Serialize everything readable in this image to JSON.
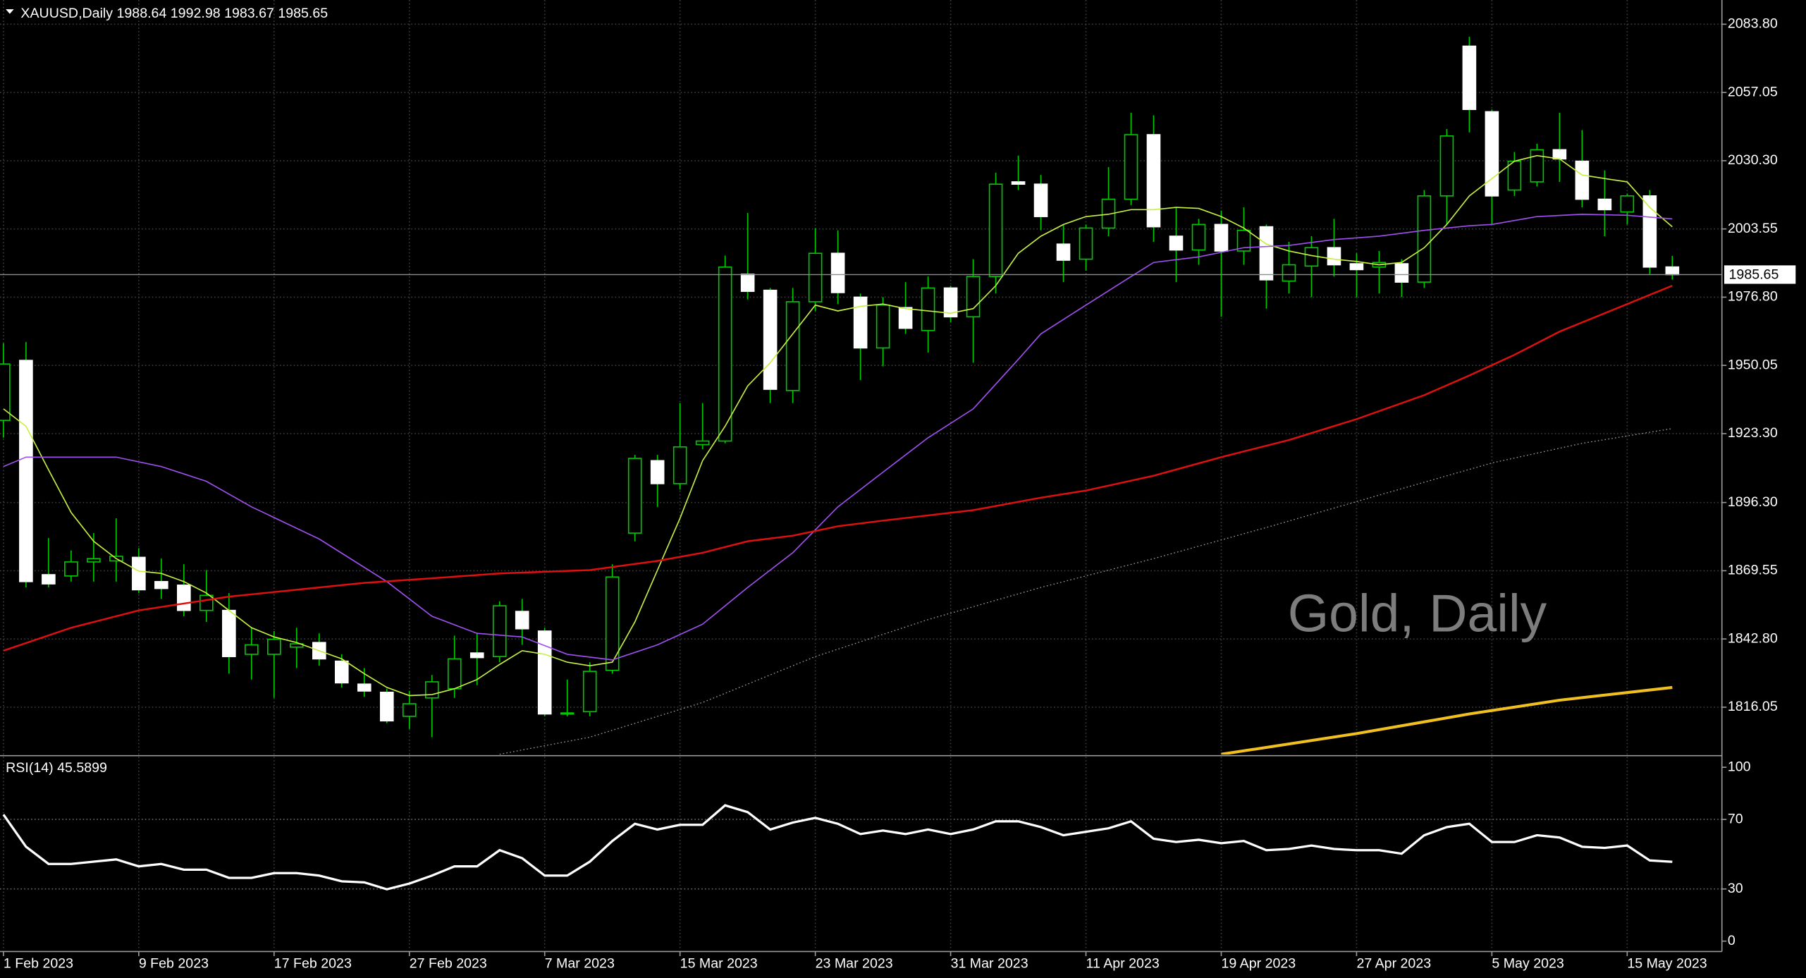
{
  "chart_data": [
    {
      "type": "candlestick",
      "header": "XAUUSD,Daily  1988.64 1992.98 1983.67 1985.65",
      "watermark": "Gold, Daily",
      "categories": [
        "1 Feb 2023",
        null,
        null,
        null,
        null,
        null,
        "9 Feb 2023",
        null,
        null,
        null,
        null,
        null,
        "17 Feb 2023",
        null,
        null,
        null,
        null,
        null,
        "27 Feb 2023",
        null,
        null,
        null,
        null,
        null,
        "7 Mar 2023",
        null,
        null,
        null,
        null,
        null,
        "15 Mar 2023",
        null,
        null,
        null,
        null,
        null,
        "23 Mar 2023",
        null,
        null,
        null,
        null,
        null,
        "31 Mar 2023",
        null,
        null,
        null,
        null,
        null,
        "11 Apr 2023",
        null,
        null,
        null,
        null,
        null,
        "19 Apr 2023",
        null,
        null,
        null,
        null,
        null,
        "27 Apr 2023",
        null,
        null,
        null,
        null,
        null,
        "5 May 2023",
        null,
        null,
        null,
        null,
        null,
        "15 May 2023",
        null,
        null
      ],
      "open": [
        1928.5,
        1952.0,
        1868.0,
        1867.5,
        1873.0,
        1873.4,
        1874.8,
        1865.3,
        1863.9,
        1854.0,
        1854.0,
        1836.8,
        1836.8,
        1839.6,
        1841.4,
        1834.1,
        1825.1,
        1821.9,
        1812.5,
        1819.7,
        1823.3,
        1837.3,
        1835.9,
        1853.6,
        1845.9,
        1813.4,
        1814.3,
        1830.5,
        1884.3,
        1912.7,
        1903.7,
        1919.0,
        1920.4,
        1985.8,
        1979.5,
        1940.2,
        1975.0,
        1994.0,
        1976.8,
        1956.9,
        1972.7,
        1963.7,
        1980.4,
        1969.1,
        1984.9,
        2022.0,
        2021.1,
        1997.6,
        1991.7,
        2003.9,
        2015.2,
        2040.5,
        2000.7,
        1995.3,
        2005.3,
        1994.9,
        2004.4,
        1983.1,
        1989.0,
        1996.2,
        1989.9,
        1988.6,
        1989.9,
        1982.7,
        2016.5,
        2075.2,
        2049.5,
        2018.8,
        2022.0,
        2034.6,
        2030.1,
        2015.2,
        2010.2,
        2016.5,
        1988.64
      ],
      "high": [
        1958.7,
        1959.2,
        1882.4,
        1877.5,
        1884.3,
        1890.1,
        1878.4,
        1874.3,
        1872.1,
        1869.8,
        1860.8,
        1847.2,
        1845.9,
        1847.2,
        1845.0,
        1836.8,
        1831.4,
        1823.3,
        1822.4,
        1828.7,
        1844.1,
        1845.0,
        1857.6,
        1858.5,
        1847.2,
        1826.9,
        1833.7,
        1872.1,
        1915.0,
        1915.0,
        1935.3,
        1935.3,
        1993.1,
        2009.8,
        1980.4,
        1980.4,
        2003.9,
        2003.0,
        1978.2,
        1976.8,
        1982.7,
        1984.9,
        1981.3,
        1991.7,
        2025.6,
        2032.3,
        2024.7,
        2005.3,
        2005.3,
        2027.8,
        2049.1,
        2048.1,
        2012.0,
        2007.5,
        2010.7,
        2012.0,
        2005.3,
        1998.5,
        2000.7,
        2007.5,
        1994.0,
        1994.9,
        1991.7,
        2018.8,
        2042.7,
        2078.9,
        2050.4,
        2033.7,
        2036.9,
        2049.1,
        2042.3,
        2026.5,
        2017.4,
        2018.8,
        1992.98
      ],
      "low": [
        1921.7,
        1863.0,
        1863.0,
        1865.3,
        1865.3,
        1865.3,
        1860.8,
        1858.5,
        1851.7,
        1849.5,
        1829.2,
        1826.9,
        1819.7,
        1831.4,
        1832.3,
        1823.8,
        1820.1,
        1809.8,
        1807.5,
        1804.3,
        1819.7,
        1824.7,
        1833.7,
        1840.5,
        1812.5,
        1812.5,
        1812.5,
        1829.2,
        1881.1,
        1894.6,
        1901.4,
        1917.2,
        1919.5,
        1975.9,
        1935.3,
        1935.3,
        1971.4,
        1974.1,
        1944.3,
        1949.7,
        1962.4,
        1955.1,
        1966.9,
        1951.1,
        1978.2,
        2018.8,
        2003.0,
        1982.7,
        1987.2,
        2000.7,
        2012.9,
        1998.5,
        1982.7,
        1989.5,
        1969.1,
        1989.5,
        1972.3,
        1978.2,
        1976.8,
        1984.9,
        1976.8,
        1978.2,
        1976.8,
        1980.4,
        2005.3,
        2041.4,
        2005.3,
        2016.5,
        2020.2,
        2022.0,
        2012.0,
        2000.7,
        2005.3,
        1985.8,
        1983.67
      ],
      "close": [
        1950.6,
        1865.3,
        1864.4,
        1873.0,
        1874.3,
        1875.2,
        1862.1,
        1862.6,
        1854.0,
        1859.9,
        1835.9,
        1840.5,
        1842.7,
        1840.9,
        1835.0,
        1825.6,
        1822.4,
        1810.7,
        1817.4,
        1826.0,
        1835.0,
        1835.5,
        1855.8,
        1846.8,
        1813.4,
        1813.8,
        1830.1,
        1867.1,
        1913.6,
        1903.7,
        1918.1,
        1920.4,
        1988.6,
        1979.1,
        1940.7,
        1975.0,
        1994.0,
        1978.6,
        1956.9,
        1973.7,
        1964.6,
        1980.4,
        1969.1,
        1984.9,
        2021.1,
        2021.1,
        2008.4,
        1991.3,
        2003.9,
        2015.2,
        2040.5,
        2004.4,
        1995.3,
        2005.3,
        1994.9,
        2003.0,
        1983.6,
        1989.5,
        1996.2,
        1989.5,
        1987.6,
        1990.4,
        1982.7,
        2016.5,
        2040.0,
        2050.4,
        2016.5,
        2030.1,
        2034.6,
        2031.0,
        2015.2,
        2011.1,
        2016.5,
        1988.6,
        1985.65
      ],
      "up_color": "#00c800",
      "bull_fill": "#000000",
      "bear_fill": "#ffffff",
      "overlays": [
        {
          "color": "#c8f040",
          "width": 1,
          "dash": null,
          "values": [
            1933.0,
            1926.2,
            1909.1,
            1892.4,
            1881.1,
            1874.3,
            1869.4,
            1868.5,
            1865.3,
            1860.8,
            1854.0,
            1847.2,
            1843.6,
            1841.4,
            1838.2,
            1835.0,
            1829.2,
            1823.8,
            1820.6,
            1821.0,
            1823.3,
            1826.9,
            1832.8,
            1838.2,
            1836.8,
            1833.7,
            1832.3,
            1833.7,
            1849.5,
            1869.8,
            1890.1,
            1912.7,
            1926.2,
            1942.0,
            1951.1,
            1962.4,
            1973.7,
            1971.4,
            1973.2,
            1974.1,
            1972.3,
            1971.4,
            1970.5,
            1972.3,
            1981.3,
            1994.0,
            2000.7,
            2005.3,
            2008.4,
            2009.3,
            2011.1,
            2011.1,
            2012.0,
            2011.6,
            2008.4,
            2003.9,
            1997.6,
            1994.9,
            1993.1,
            1991.7,
            1990.8,
            1989.5,
            1990.4,
            1996.2,
            2005.3,
            2016.5,
            2023.3,
            2030.1,
            2032.3,
            2031.0,
            2024.7,
            2023.3,
            2022.0,
            2012.0,
            2004.4
          ]
        },
        {
          "color": "#a050f0",
          "width": 1,
          "dash": null,
          "x": [
            0,
            1,
            5,
            7,
            9,
            11,
            14,
            17,
            19,
            21,
            23,
            25,
            27,
            29,
            31,
            33,
            35,
            37,
            39,
            41,
            43,
            45,
            46,
            48,
            50,
            51,
            53,
            55,
            57,
            59,
            61,
            63,
            65,
            66,
            68,
            70,
            72,
            74
          ],
          "values": [
            1910.4,
            1914.1,
            1914.1,
            1910.4,
            1904.6,
            1894.6,
            1882.0,
            1865.3,
            1851.7,
            1845.0,
            1843.6,
            1836.8,
            1834.6,
            1840.5,
            1848.6,
            1863.0,
            1876.6,
            1894.6,
            1908.2,
            1921.7,
            1933.0,
            1952.4,
            1962.4,
            1973.7,
            1984.9,
            1990.4,
            1992.6,
            1996.2,
            1997.1,
            1999.4,
            2000.7,
            2003.0,
            2004.8,
            2005.3,
            2008.4,
            2009.3,
            2008.9,
            2007.5
          ]
        },
        {
          "color": "#e01010",
          "width": 1.5,
          "dash": null,
          "x": [
            0,
            3,
            6,
            10,
            13,
            16,
            19,
            22,
            26,
            29,
            31,
            33,
            35,
            37,
            39,
            43,
            46,
            48,
            51,
            54,
            57,
            60,
            63,
            65,
            67,
            69,
            71,
            74
          ],
          "values": [
            1838.2,
            1847.2,
            1854.0,
            1859.4,
            1862.1,
            1864.8,
            1866.6,
            1868.5,
            1869.8,
            1873.4,
            1876.6,
            1881.1,
            1883.3,
            1887.0,
            1889.2,
            1893.3,
            1898.2,
            1901.0,
            1906.8,
            1914.1,
            1920.8,
            1929.0,
            1938.4,
            1946.1,
            1954.2,
            1963.3,
            1970.5,
            1981.3
          ]
        },
        {
          "color": "#a0a0a0",
          "width": 0.8,
          "dash": "1 2",
          "x": [
            22,
            26,
            31,
            36,
            41,
            46,
            51,
            56,
            61,
            66,
            70,
            74
          ],
          "values": [
            1797.6,
            1804.3,
            1817.9,
            1835.9,
            1850.4,
            1863.0,
            1874.3,
            1886.5,
            1899.2,
            1911.8,
            1919.5,
            1925.3
          ]
        },
        {
          "color": "#f0c020",
          "width": 2.5,
          "dash": null,
          "x": [
            54,
            60,
            65,
            69,
            74
          ],
          "values": [
            1797.6,
            1805.7,
            1813.4,
            1818.8,
            1823.8
          ]
        }
      ],
      "price_line": 1985.65,
      "ylim": [
        1797.5,
        2093.3
      ],
      "yticks": [
        {
          "value": 2083.8,
          "label": "2083.80"
        },
        2057.05,
        {
          "value": 2030.3,
          "label": "2030.30"
        },
        2003.55,
        {
          "value": 1976.8,
          "label": "1976.80"
        },
        1950.05,
        {
          "value": 1923.3,
          "label": "1923.30"
        },
        {
          "value": 1896.3,
          "label": "1896.30"
        },
        1869.55,
        {
          "value": 1842.8,
          "label": "1842.80"
        },
        1816.05
      ],
      "grid": true
    },
    {
      "type": "line",
      "title": "RSI(14) 45.5899",
      "color": "#ffffff",
      "values": [
        72.8,
        54.3,
        44.4,
        44.4,
        45.7,
        47.0,
        43.0,
        44.4,
        41.1,
        41.1,
        36.4,
        36.4,
        39.1,
        39.1,
        37.7,
        34.4,
        33.8,
        29.8,
        33.1,
        37.7,
        43.0,
        43.0,
        52.3,
        47.7,
        37.7,
        37.7,
        45.7,
        57.6,
        67.5,
        64.2,
        66.9,
        66.9,
        78.1,
        74.2,
        64.2,
        68.2,
        70.9,
        67.5,
        61.6,
        63.6,
        61.6,
        64.2,
        61.6,
        64.2,
        68.9,
        68.9,
        65.6,
        60.9,
        62.9,
        64.9,
        68.9,
        58.9,
        57.0,
        58.3,
        56.3,
        57.6,
        52.3,
        53.0,
        55.0,
        53.0,
        52.3,
        52.3,
        50.3,
        60.9,
        65.6,
        67.5,
        57.0,
        57.0,
        60.9,
        59.6,
        54.3,
        53.6,
        55.0,
        46.4,
        45.5899
      ],
      "levels": [
        70,
        30
      ],
      "ylim": [
        -5.3,
        106
      ],
      "yticks": [
        100,
        70,
        30,
        0
      ]
    }
  ]
}
